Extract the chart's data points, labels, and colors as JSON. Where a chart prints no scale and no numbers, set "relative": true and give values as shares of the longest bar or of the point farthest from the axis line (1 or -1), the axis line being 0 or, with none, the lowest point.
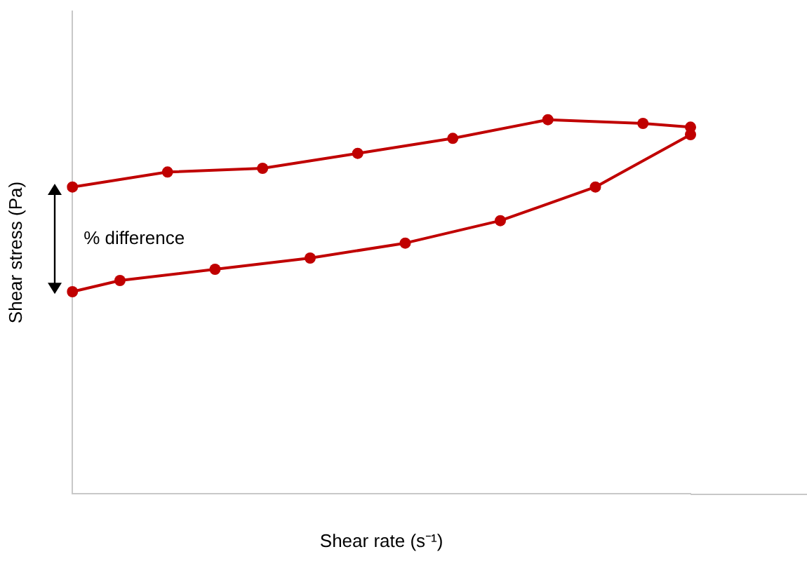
{
  "chart_data": {
    "type": "line",
    "relative": true,
    "xlabel": "Shear rate (s⁻¹)",
    "ylabel": "Shear stress (Pa)",
    "annotations": [
      "% difference"
    ],
    "grid": false,
    "legend": false,
    "marker": "circle",
    "line_style": "solid",
    "categories": [
      null,
      null,
      null,
      null,
      null,
      null,
      null,
      null,
      null,
      null,
      null,
      null,
      null,
      null
    ],
    "series": [
      {
        "color": "#c00000",
        "values": [
          0.82,
          null,
          0.86,
          null,
          0.87,
          null,
          0.91,
          null,
          0.95,
          null,
          1.0,
          null,
          0.99,
          0.98
        ]
      },
      {
        "color": "#c00000",
        "values": [
          0.54,
          0.57,
          null,
          0.6,
          null,
          0.63,
          null,
          0.67,
          null,
          0.73,
          null,
          0.82,
          null,
          0.96
        ]
      }
    ]
  }
}
